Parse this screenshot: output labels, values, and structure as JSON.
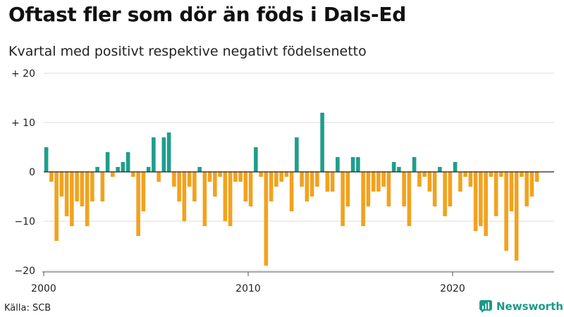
{
  "header": {
    "title": "Oftast fler som dör än föds i Dals-Ed",
    "subtitle": "Kvartal med positivt respektive negativt födelsenetto"
  },
  "footer": {
    "source": "Källa: SCB",
    "brand": "Newsworthy"
  },
  "brand_icon": "chart-logo-icon",
  "colors": {
    "positive": "#1f9e8c",
    "negative": "#f2a21e",
    "brand": "#1a9a8a",
    "grid": "#dddddd"
  },
  "chart_data": {
    "type": "bar",
    "title": "Oftast fler som dör än föds i Dals-Ed",
    "subtitle": "Kvartal med positivt respektive negativt födelsenetto",
    "xlabel": "",
    "ylabel": "",
    "ylim": [
      -20,
      20
    ],
    "yticks": [
      {
        "value": 20,
        "label": "+ 20"
      },
      {
        "value": 10,
        "label": "+ 10"
      },
      {
        "value": 0,
        "label": "0"
      },
      {
        "value": -10,
        "label": "−10"
      },
      {
        "value": -20,
        "label": "−20"
      }
    ],
    "xticks": [
      {
        "value": 2000,
        "label": "2000"
      },
      {
        "value": 2010,
        "label": "2010"
      },
      {
        "value": 2020,
        "label": "2020"
      }
    ],
    "start_year": 2000,
    "periods_per_year": 4,
    "values": [
      5,
      -2,
      -14,
      -5,
      -9,
      -11,
      -6,
      -7,
      -11,
      -6,
      1,
      -6,
      4,
      -1,
      1,
      2,
      4,
      -1,
      -13,
      -8,
      1,
      7,
      -2,
      7,
      8,
      -3,
      -6,
      -10,
      -3,
      -6,
      1,
      -11,
      -2,
      -5,
      -1,
      -10,
      -11,
      -2,
      -2,
      -6,
      -7,
      5,
      -1,
      -19,
      -6,
      -3,
      -2,
      -1,
      -8,
      7,
      -3,
      -6,
      -5,
      -3,
      12,
      -4,
      -4,
      3,
      -11,
      -7,
      3,
      3,
      -11,
      -7,
      -4,
      -4,
      -3,
      -7,
      2,
      1,
      -7,
      -11,
      3,
      -3,
      -1,
      -4,
      -7,
      1,
      -9,
      -7,
      2,
      -4,
      -1,
      -3,
      -12,
      -11,
      -13,
      -1,
      -9,
      -1,
      -16,
      -8,
      -18,
      -1,
      -7,
      -5,
      -2
    ]
  }
}
